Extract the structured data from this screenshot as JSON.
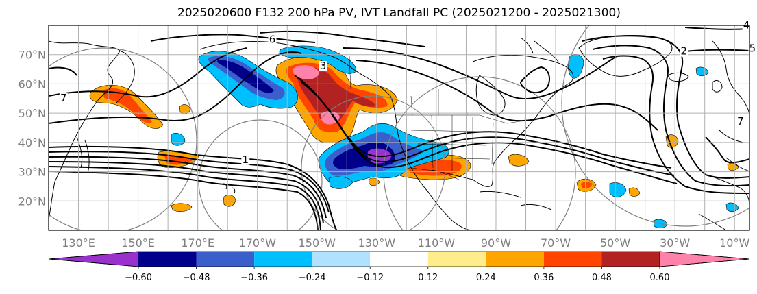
{
  "title": "2025020600 F132 200 hPa PV, IVT Landfall PC (2025021200 - 2025021300)",
  "map": {
    "lon_range": [
      120,
      355
    ],
    "lat_range": [
      10,
      80
    ],
    "lat_ticks": [
      {
        "value": 20,
        "label": "20°N"
      },
      {
        "value": 30,
        "label": "30°N"
      },
      {
        "value": 40,
        "label": "40°N"
      },
      {
        "value": 50,
        "label": "50°N"
      },
      {
        "value": 60,
        "label": "60°N"
      },
      {
        "value": 70,
        "label": "70°N"
      }
    ],
    "lon_ticks": [
      {
        "value": 130,
        "label": "130°E"
      },
      {
        "value": 150,
        "label": "150°E"
      },
      {
        "value": 170,
        "label": "170°E"
      },
      {
        "value": 190,
        "label": "170°W"
      },
      {
        "value": 210,
        "label": "150°W"
      },
      {
        "value": 230,
        "label": "130°W"
      },
      {
        "value": 250,
        "label": "110°W"
      },
      {
        "value": 270,
        "label": "90°W"
      },
      {
        "value": 290,
        "label": "70°W"
      },
      {
        "value": 310,
        "label": "50°W"
      },
      {
        "value": 330,
        "label": "30°W"
      },
      {
        "value": 350,
        "label": "10°W"
      }
    ],
    "contour_labels": [
      {
        "lon": 125,
        "lat": 54,
        "text": "7"
      },
      {
        "lon": 195,
        "lat": 74,
        "text": "6"
      },
      {
        "lon": 212,
        "lat": 65,
        "text": "3"
      },
      {
        "lon": 186,
        "lat": 33,
        "text": "1"
      },
      {
        "lon": 333,
        "lat": 70,
        "text": "2"
      },
      {
        "lon": 354,
        "lat": 79,
        "text": "4"
      },
      {
        "lon": 356,
        "lat": 71,
        "text": "5"
      },
      {
        "lon": 352,
        "lat": 46,
        "text": "7"
      }
    ]
  },
  "colorbar": {
    "colors": [
      "#9932cc",
      "#00008b",
      "#3a5fcd",
      "#00bfff",
      "#b0e2ff",
      "#ffffff",
      "#ffec8b",
      "#ffa500",
      "#ff4500",
      "#b22222",
      "#ff82ab"
    ],
    "tick_labels": [
      "−0.60",
      "−0.48",
      "−0.36",
      "−0.24",
      "−0.12",
      "0.12",
      "0.24",
      "0.36",
      "0.48",
      "0.60"
    ]
  },
  "colors": {
    "positive_shades": [
      "#ffa500",
      "#ff4500",
      "#b22222",
      "#ff82ab"
    ],
    "negative_shades": [
      "#00bfff",
      "#3a5fcd",
      "#00008b",
      "#9932cc"
    ],
    "contour": "#000000",
    "circle": "#808080",
    "grid": "#b0b0b0"
  }
}
